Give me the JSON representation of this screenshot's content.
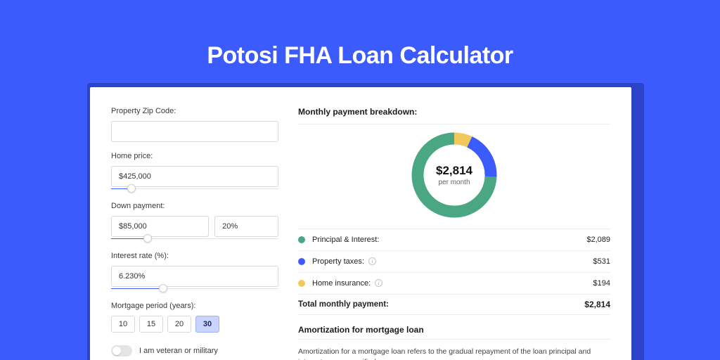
{
  "page": {
    "background_color": "#3b5bfd",
    "card_shadow_color": "#2a43c9",
    "card_background": "#ffffff",
    "title": "Potosi FHA Loan Calculator",
    "title_color": "#ffffff",
    "title_fontsize": 34
  },
  "form": {
    "zip": {
      "label": "Property Zip Code:",
      "value": ""
    },
    "home_price": {
      "label": "Home price:",
      "value": "$425,000",
      "slider_fill_pct": 12
    },
    "down_payment": {
      "label": "Down payment:",
      "amount": "$85,000",
      "percent": "20%",
      "slider_fill_pct": 22
    },
    "interest_rate": {
      "label": "Interest rate (%):",
      "value": "6.230%",
      "slider_fill_pct": 31
    },
    "mortgage_period": {
      "label": "Mortgage period (years):",
      "options": [
        "10",
        "15",
        "20",
        "30"
      ],
      "selected_index": 3
    },
    "veteran": {
      "label": "I am veteran or military",
      "checked": false
    }
  },
  "breakdown": {
    "title": "Monthly payment breakdown:",
    "donut": {
      "center_amount": "$2,814",
      "center_sub": "per month",
      "segments": [
        {
          "name": "principal_interest",
          "value": 2089,
          "color": "#4aa784"
        },
        {
          "name": "property_taxes",
          "value": 531,
          "color": "#3b5bfd"
        },
        {
          "name": "home_insurance",
          "value": 194,
          "color": "#f0c95a"
        }
      ],
      "stroke_width": 17,
      "background_color": "#ffffff"
    },
    "rows": [
      {
        "dot_color": "#4aa784",
        "label": "Principal & Interest:",
        "info": false,
        "amount": "$2,089"
      },
      {
        "dot_color": "#3b5bfd",
        "label": "Property taxes:",
        "info": true,
        "amount": "$531"
      },
      {
        "dot_color": "#f0c95a",
        "label": "Home insurance:",
        "info": true,
        "amount": "$194"
      }
    ],
    "total": {
      "label": "Total monthly payment:",
      "amount": "$2,814"
    }
  },
  "amortization": {
    "title": "Amortization for mortgage loan",
    "text": "Amortization for a mortgage loan refers to the gradual repayment of the loan principal and interest over a specified"
  }
}
